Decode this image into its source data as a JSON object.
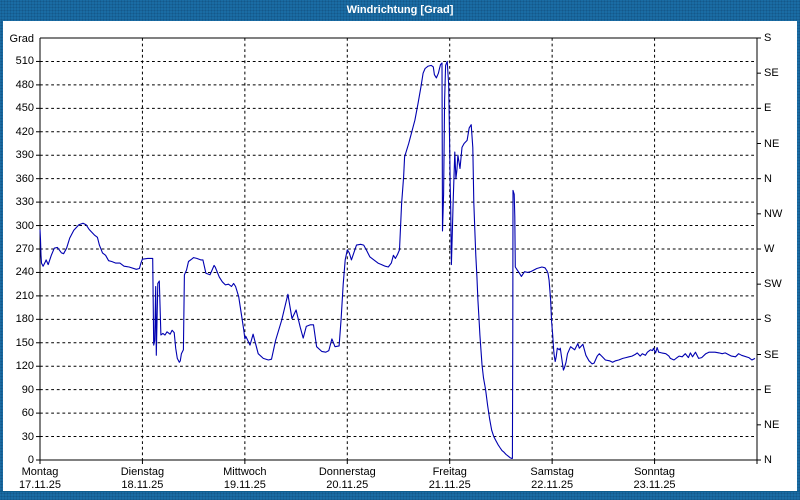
{
  "window": {
    "title": "Windrichtung [Grad]"
  },
  "colors": {
    "frame_blue": "#1a6ca4",
    "line_blue": "#0000b0",
    "grid_black": "#000000",
    "plot_bg": "#ffffff",
    "label_text": "#000000"
  },
  "chart_data": {
    "type": "line",
    "title": "Windrichtung [Grad]",
    "ylabel": "Grad",
    "y_axis_title": "Grad",
    "ylim": [
      0,
      540
    ],
    "y_tick_step": 30,
    "left_ticks": [
      0,
      30,
      60,
      90,
      120,
      150,
      180,
      210,
      240,
      270,
      300,
      330,
      360,
      390,
      420,
      450,
      480,
      510
    ],
    "right_labels": [
      {
        "deg": 540,
        "label": "S"
      },
      {
        "deg": 495,
        "label": "SE"
      },
      {
        "deg": 450,
        "label": "E"
      },
      {
        "deg": 405,
        "label": "NE"
      },
      {
        "deg": 360,
        "label": "N"
      },
      {
        "deg": 315,
        "label": "NW"
      },
      {
        "deg": 270,
        "label": "W"
      },
      {
        "deg": 225,
        "label": "SW"
      },
      {
        "deg": 180,
        "label": "S"
      },
      {
        "deg": 135,
        "label": "SE"
      },
      {
        "deg": 90,
        "label": "E"
      },
      {
        "deg": 45,
        "label": "NE"
      },
      {
        "deg": 0,
        "label": "N"
      }
    ],
    "x_days": [
      {
        "name": "Montag",
        "date": "17.11.25"
      },
      {
        "name": "Dienstag",
        "date": "18.11.25"
      },
      {
        "name": "Mittwoch",
        "date": "19.11.25"
      },
      {
        "name": "Donnerstag",
        "date": "20.11.25"
      },
      {
        "name": "Freitag",
        "date": "21.11.25"
      },
      {
        "name": "Samstag",
        "date": "22.11.25"
      },
      {
        "name": "Sonntag",
        "date": "23.11.25"
      }
    ],
    "x_unit": "days since Montag 17.11.25 00:00",
    "x_range_days": 7,
    "grid": "dashed",
    "legend": "none",
    "series": [
      {
        "name": "Windrichtung",
        "color": "#0000b0",
        "points": [
          [
            0.0,
            295
          ],
          [
            0.005,
            282
          ],
          [
            0.01,
            262
          ],
          [
            0.015,
            252
          ],
          [
            0.03,
            248
          ],
          [
            0.05,
            253
          ],
          [
            0.06,
            256
          ],
          [
            0.08,
            250
          ],
          [
            0.11,
            262
          ],
          [
            0.14,
            271
          ],
          [
            0.17,
            272
          ],
          [
            0.21,
            265
          ],
          [
            0.23,
            264
          ],
          [
            0.26,
            271
          ],
          [
            0.29,
            284
          ],
          [
            0.33,
            294
          ],
          [
            0.38,
            301
          ],
          [
            0.42,
            303
          ],
          [
            0.45,
            301
          ],
          [
            0.48,
            295
          ],
          [
            0.53,
            288
          ],
          [
            0.56,
            285
          ],
          [
            0.58,
            275
          ],
          [
            0.61,
            265
          ],
          [
            0.64,
            262
          ],
          [
            0.67,
            255
          ],
          [
            0.7,
            254
          ],
          [
            0.74,
            252
          ],
          [
            0.78,
            252
          ],
          [
            0.82,
            248
          ],
          [
            0.87,
            247
          ],
          [
            0.94,
            244
          ],
          [
            0.97,
            245
          ],
          [
            0.985,
            252
          ],
          [
            1.0,
            257
          ],
          [
            1.05,
            258
          ],
          [
            1.1,
            258
          ],
          [
            1.11,
            147
          ],
          [
            1.12,
            153
          ],
          [
            1.13,
            222
          ],
          [
            1.135,
            134
          ],
          [
            1.15,
            226
          ],
          [
            1.165,
            229
          ],
          [
            1.18,
            160
          ],
          [
            1.2,
            162
          ],
          [
            1.22,
            160
          ],
          [
            1.24,
            164
          ],
          [
            1.27,
            161
          ],
          [
            1.29,
            166
          ],
          [
            1.31,
            163
          ],
          [
            1.325,
            143
          ],
          [
            1.34,
            130
          ],
          [
            1.36,
            125
          ],
          [
            1.37,
            127
          ],
          [
            1.38,
            136
          ],
          [
            1.4,
            141
          ],
          [
            1.41,
            237
          ],
          [
            1.43,
            243
          ],
          [
            1.45,
            254
          ],
          [
            1.48,
            257
          ],
          [
            1.5,
            259
          ],
          [
            1.53,
            258
          ],
          [
            1.57,
            256
          ],
          [
            1.59,
            256
          ],
          [
            1.62,
            239
          ],
          [
            1.66,
            237
          ],
          [
            1.7,
            249
          ],
          [
            1.71,
            247
          ],
          [
            1.75,
            234
          ],
          [
            1.78,
            228
          ],
          [
            1.81,
            224
          ],
          [
            1.84,
            225
          ],
          [
            1.87,
            222
          ],
          [
            1.89,
            226
          ],
          [
            1.91,
            222
          ],
          [
            1.94,
            209
          ],
          [
            1.97,
            183
          ],
          [
            1.99,
            166
          ],
          [
            2.0,
            155
          ],
          [
            2.01,
            158
          ],
          [
            2.05,
            147
          ],
          [
            2.08,
            161
          ],
          [
            2.13,
            136
          ],
          [
            2.18,
            130
          ],
          [
            2.23,
            128
          ],
          [
            2.26,
            129
          ],
          [
            2.3,
            153
          ],
          [
            2.36,
            179
          ],
          [
            2.42,
            212
          ],
          [
            2.46,
            181
          ],
          [
            2.5,
            192
          ],
          [
            2.54,
            170
          ],
          [
            2.57,
            156
          ],
          [
            2.6,
            171
          ],
          [
            2.64,
            173
          ],
          [
            2.67,
            173
          ],
          [
            2.7,
            145
          ],
          [
            2.75,
            139
          ],
          [
            2.79,
            138
          ],
          [
            2.82,
            140
          ],
          [
            2.85,
            155
          ],
          [
            2.88,
            145
          ],
          [
            2.92,
            146
          ],
          [
            2.94,
            180
          ],
          [
            2.96,
            225
          ],
          [
            2.98,
            256
          ],
          [
            3.0,
            269
          ],
          [
            3.02,
            265
          ],
          [
            3.04,
            256
          ],
          [
            3.09,
            275
          ],
          [
            3.13,
            276
          ],
          [
            3.16,
            275
          ],
          [
            3.19,
            268
          ],
          [
            3.22,
            260
          ],
          [
            3.26,
            256
          ],
          [
            3.3,
            252
          ],
          [
            3.37,
            248
          ],
          [
            3.4,
            247
          ],
          [
            3.43,
            252
          ],
          [
            3.45,
            262
          ],
          [
            3.47,
            258
          ],
          [
            3.49,
            263
          ],
          [
            3.51,
            269
          ],
          [
            3.53,
            328
          ],
          [
            3.55,
            362
          ],
          [
            3.56,
            388
          ],
          [
            3.6,
            405
          ],
          [
            3.63,
            420
          ],
          [
            3.66,
            435
          ],
          [
            3.69,
            456
          ],
          [
            3.72,
            478
          ],
          [
            3.74,
            495
          ],
          [
            3.76,
            501
          ],
          [
            3.79,
            504
          ],
          [
            3.82,
            505
          ],
          [
            3.84,
            503
          ],
          [
            3.85,
            493
          ],
          [
            3.87,
            489
          ],
          [
            3.89,
            495
          ],
          [
            3.9,
            501
          ],
          [
            3.91,
            506
          ],
          [
            3.925,
            508
          ],
          [
            3.93,
            293
          ],
          [
            3.94,
            340
          ],
          [
            3.95,
            460
          ],
          [
            3.96,
            505
          ],
          [
            3.975,
            510
          ],
          [
            3.99,
            480
          ],
          [
            4.0,
            400
          ],
          [
            4.005,
            350
          ],
          [
            4.01,
            322
          ],
          [
            4.016,
            250
          ],
          [
            4.025,
            290
          ],
          [
            4.033,
            328
          ],
          [
            4.05,
            394
          ],
          [
            4.06,
            360
          ],
          [
            4.07,
            371
          ],
          [
            4.08,
            390
          ],
          [
            4.1,
            373
          ],
          [
            4.12,
            400
          ],
          [
            4.14,
            405
          ],
          [
            4.17,
            409
          ],
          [
            4.19,
            425
          ],
          [
            4.21,
            429
          ],
          [
            4.225,
            400
          ],
          [
            4.235,
            330
          ],
          [
            4.245,
            295
          ],
          [
            4.255,
            262
          ],
          [
            4.265,
            235
          ],
          [
            4.275,
            205
          ],
          [
            4.285,
            183
          ],
          [
            4.295,
            160
          ],
          [
            4.305,
            140
          ],
          [
            4.315,
            122
          ],
          [
            4.33,
            105
          ],
          [
            4.35,
            90
          ],
          [
            4.37,
            70
          ],
          [
            4.39,
            52
          ],
          [
            4.41,
            38
          ],
          [
            4.43,
            30
          ],
          [
            4.45,
            25
          ],
          [
            4.47,
            20
          ],
          [
            4.49,
            16
          ],
          [
            4.51,
            12
          ],
          [
            4.53,
            10
          ],
          [
            4.55,
            7
          ],
          [
            4.57,
            5
          ],
          [
            4.59,
            3
          ],
          [
            4.605,
            2
          ],
          [
            4.612,
            2
          ],
          [
            4.616,
            170
          ],
          [
            4.618,
            345
          ],
          [
            4.63,
            340
          ],
          [
            4.635,
            311
          ],
          [
            4.64,
            247
          ],
          [
            4.66,
            243
          ],
          [
            4.68,
            239
          ],
          [
            4.7,
            235
          ],
          [
            4.73,
            241
          ],
          [
            4.76,
            240
          ],
          [
            4.79,
            241
          ],
          [
            4.82,
            243
          ],
          [
            4.85,
            245
          ],
          [
            4.9,
            247
          ],
          [
            4.93,
            246
          ],
          [
            4.95,
            242
          ],
          [
            4.96,
            239
          ],
          [
            4.97,
            230
          ],
          [
            4.985,
            205
          ],
          [
            4.995,
            177
          ],
          [
            5.005,
            160
          ],
          [
            5.015,
            140
          ],
          [
            5.02,
            134
          ],
          [
            5.03,
            126
          ],
          [
            5.04,
            132
          ],
          [
            5.05,
            143
          ],
          [
            5.07,
            141
          ],
          [
            5.08,
            143
          ],
          [
            5.09,
            133
          ],
          [
            5.11,
            115
          ],
          [
            5.12,
            118
          ],
          [
            5.135,
            125
          ],
          [
            5.15,
            136
          ],
          [
            5.18,
            145
          ],
          [
            5.22,
            141
          ],
          [
            5.25,
            149
          ],
          [
            5.265,
            143
          ],
          [
            5.3,
            148
          ],
          [
            5.33,
            134
          ],
          [
            5.36,
            127
          ],
          [
            5.39,
            123
          ],
          [
            5.41,
            124
          ],
          [
            5.44,
            133
          ],
          [
            5.46,
            136
          ],
          [
            5.49,
            132
          ],
          [
            5.52,
            128
          ],
          [
            5.56,
            127
          ],
          [
            5.59,
            125
          ],
          [
            5.62,
            127
          ],
          [
            5.65,
            128
          ],
          [
            5.69,
            130
          ],
          [
            5.72,
            131
          ],
          [
            5.75,
            132
          ],
          [
            5.78,
            133
          ],
          [
            5.81,
            135
          ],
          [
            5.83,
            137
          ],
          [
            5.86,
            133
          ],
          [
            5.88,
            136
          ],
          [
            5.91,
            134
          ],
          [
            5.93,
            138
          ],
          [
            5.96,
            141
          ],
          [
            5.98,
            140
          ],
          [
            5.99,
            143
          ],
          [
            6.01,
            137
          ],
          [
            6.025,
            144
          ],
          [
            6.04,
            138
          ],
          [
            6.07,
            137
          ],
          [
            6.11,
            136
          ],
          [
            6.14,
            133
          ],
          [
            6.155,
            130
          ],
          [
            6.19,
            128
          ],
          [
            6.22,
            131
          ],
          [
            6.24,
            133
          ],
          [
            6.27,
            132
          ],
          [
            6.3,
            136
          ],
          [
            6.33,
            131
          ],
          [
            6.35,
            137
          ],
          [
            6.37,
            132
          ],
          [
            6.4,
            138
          ],
          [
            6.43,
            130
          ],
          [
            6.46,
            131
          ],
          [
            6.5,
            136
          ],
          [
            6.53,
            138
          ],
          [
            6.56,
            138
          ],
          [
            6.59,
            138
          ],
          [
            6.63,
            137
          ],
          [
            6.66,
            136
          ],
          [
            6.69,
            137
          ],
          [
            6.72,
            135
          ],
          [
            6.75,
            133
          ],
          [
            6.79,
            132
          ],
          [
            6.82,
            136
          ],
          [
            6.85,
            134
          ],
          [
            6.92,
            131
          ],
          [
            6.95,
            128
          ],
          [
            6.98,
            130
          ]
        ]
      }
    ]
  }
}
